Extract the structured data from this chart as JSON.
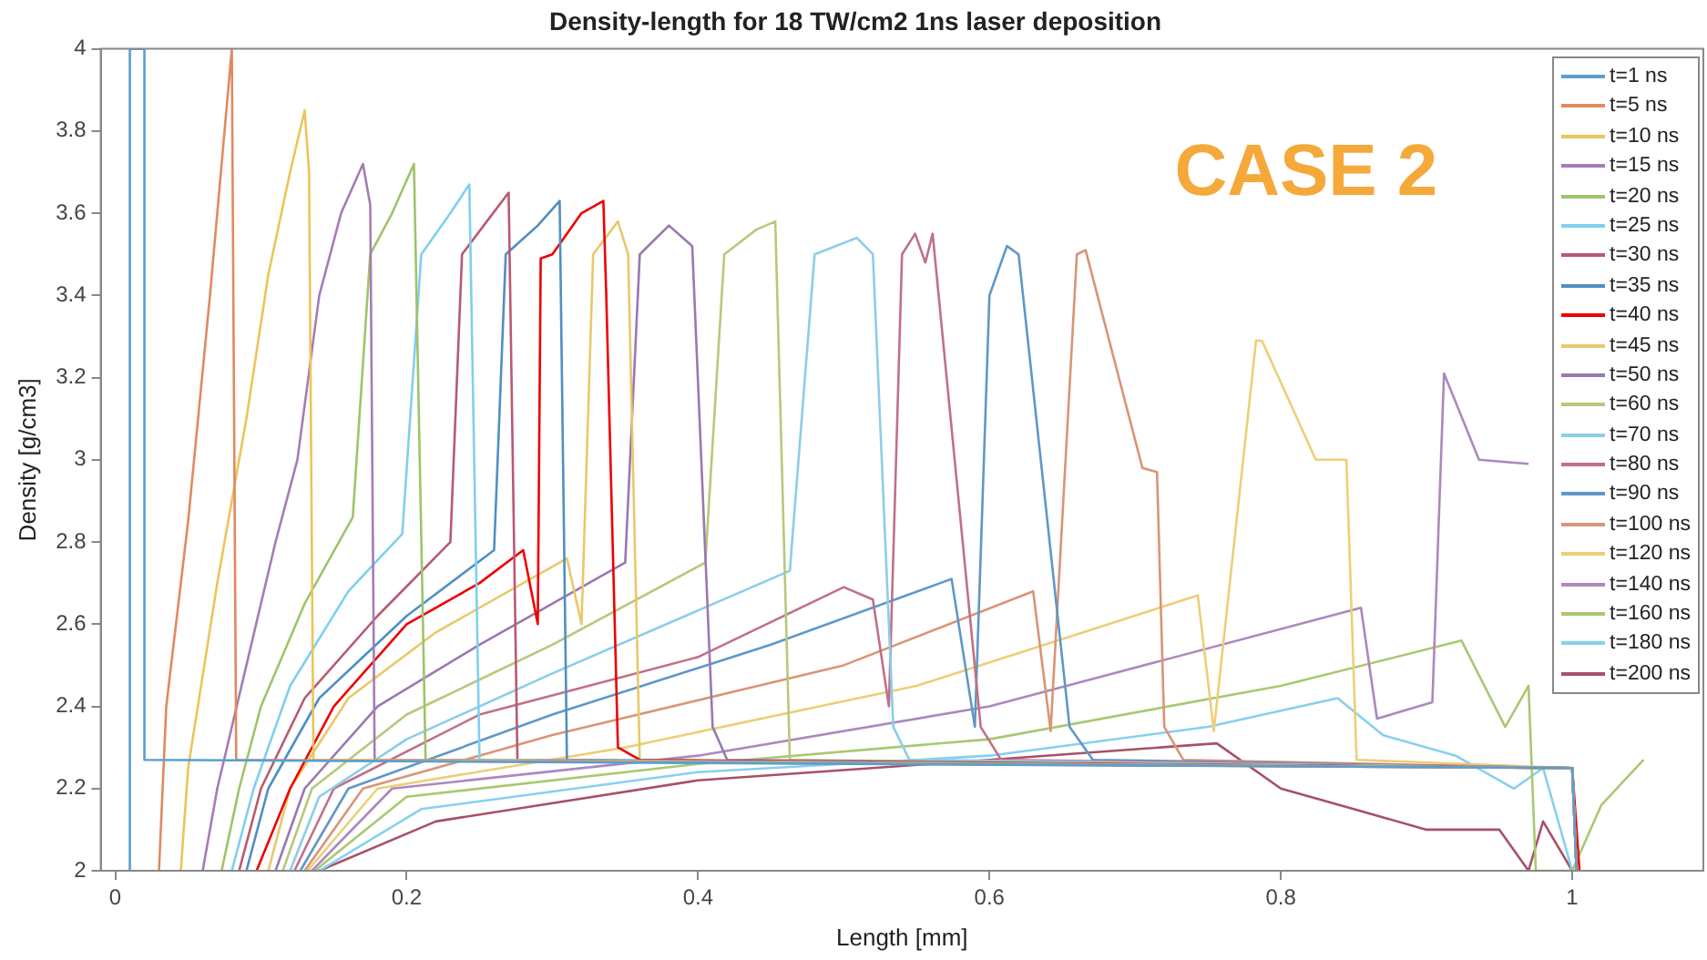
{
  "chart_data": {
    "type": "line",
    "title": "Density-length for 18 TW/cm2 1ns laser deposition",
    "xlabel": "Length [mm]",
    "ylabel": "Density [g/cm3]",
    "annotations": [
      "CASE 2"
    ],
    "xlim": [
      -0.01,
      1.09
    ],
    "xticks": [
      0,
      0.2,
      0.4,
      0.6,
      0.8,
      1
    ],
    "ylim": [
      2,
      4
    ],
    "yticks": [
      2,
      2.2,
      2.4,
      2.6,
      2.8,
      3,
      3.2,
      3.4,
      3.6,
      3.8,
      4
    ],
    "grid": false,
    "legend": "top right",
    "marker": "none",
    "line_style": "solid",
    "series": [
      {
        "name": "t=1 ns",
        "color": "#5a9fd0",
        "x": [
          0.01,
          0.01,
          0.02,
          0.02,
          1.0,
          1.003
        ],
        "values": [
          2,
          4,
          4,
          2.27,
          2.25,
          2
        ]
      },
      {
        "name": "t=5 ns",
        "color": "#e08a60",
        "x": [
          0.03,
          0.035,
          0.05,
          0.065,
          0.075,
          0.08,
          0.083,
          1.0,
          1.003
        ],
        "values": [
          2,
          2.4,
          2.85,
          3.4,
          3.8,
          4,
          2.27,
          2.25,
          2
        ]
      },
      {
        "name": "t=10 ns",
        "color": "#edc45a",
        "x": [
          0.045,
          0.05,
          0.07,
          0.09,
          0.105,
          0.12,
          0.13,
          0.133,
          0.136,
          1.0,
          1.003
        ],
        "values": [
          2,
          2.25,
          2.7,
          3.1,
          3.45,
          3.7,
          3.85,
          3.7,
          2.27,
          2.25,
          2
        ]
      },
      {
        "name": "t=15 ns",
        "color": "#a77bb5",
        "x": [
          0.06,
          0.07,
          0.09,
          0.11,
          0.125,
          0.14,
          0.155,
          0.17,
          0.175,
          0.178,
          1.0,
          1.003
        ],
        "values": [
          2,
          2.2,
          2.5,
          2.8,
          3.0,
          3.4,
          3.6,
          3.72,
          3.62,
          2.27,
          2.25,
          2
        ]
      },
      {
        "name": "t=20 ns",
        "color": "#9dc46a",
        "x": [
          0.073,
          0.085,
          0.1,
          0.13,
          0.163,
          0.175,
          0.19,
          0.205,
          0.213,
          1.0,
          1.003
        ],
        "values": [
          2,
          2.2,
          2.4,
          2.65,
          2.86,
          3.5,
          3.6,
          3.72,
          2.27,
          2.25,
          2
        ]
      },
      {
        "name": "t=25 ns",
        "color": "#7fcff0",
        "x": [
          0.08,
          0.095,
          0.12,
          0.16,
          0.197,
          0.21,
          0.23,
          0.243,
          0.25,
          1.0,
          1.003
        ],
        "values": [
          2,
          2.2,
          2.45,
          2.68,
          2.82,
          3.5,
          3.6,
          3.67,
          2.27,
          2.25,
          2
        ]
      },
      {
        "name": "t=30 ns",
        "color": "#b85a72",
        "x": [
          0.085,
          0.1,
          0.13,
          0.18,
          0.23,
          0.238,
          0.255,
          0.27,
          0.276,
          1.0,
          1.003
        ],
        "values": [
          2,
          2.2,
          2.42,
          2.62,
          2.8,
          3.5,
          3.58,
          3.65,
          2.27,
          2.25,
          2
        ]
      },
      {
        "name": "t=35 ns",
        "color": "#4f8fc4",
        "x": [
          0.09,
          0.105,
          0.14,
          0.2,
          0.26,
          0.268,
          0.29,
          0.305,
          0.31,
          1.0,
          1.003
        ],
        "values": [
          2,
          2.2,
          2.42,
          2.62,
          2.78,
          3.5,
          3.57,
          3.63,
          2.27,
          2.25,
          2
        ]
      },
      {
        "name": "t=40 ns",
        "color": "#ee0000",
        "x": [
          0.097,
          0.12,
          0.15,
          0.2,
          0.25,
          0.28,
          0.29,
          0.292,
          0.3,
          0.32,
          0.335,
          0.337,
          0.345,
          0.36,
          1.0,
          1.005
        ],
        "values": [
          2,
          2.2,
          2.4,
          2.6,
          2.7,
          2.78,
          2.6,
          3.49,
          3.5,
          3.6,
          3.63,
          3.4,
          2.3,
          2.27,
          2.25,
          2
        ]
      },
      {
        "name": "t=45 ns",
        "color": "#e8c86a",
        "x": [
          0.105,
          0.12,
          0.16,
          0.22,
          0.31,
          0.32,
          0.328,
          0.345,
          0.352,
          0.36,
          1.0,
          1.003
        ],
        "values": [
          2,
          2.2,
          2.42,
          2.58,
          2.76,
          2.6,
          3.5,
          3.58,
          3.5,
          2.27,
          2.25,
          2
        ]
      },
      {
        "name": "t=50 ns",
        "color": "#9a78b0",
        "x": [
          0.11,
          0.13,
          0.18,
          0.25,
          0.35,
          0.36,
          0.38,
          0.396,
          0.41,
          0.42,
          1.0,
          1.003
        ],
        "values": [
          2,
          2.2,
          2.4,
          2.55,
          2.75,
          3.5,
          3.57,
          3.52,
          2.35,
          2.27,
          2.25,
          2
        ]
      },
      {
        "name": "t=60 ns",
        "color": "#b5c97a",
        "x": [
          0.115,
          0.135,
          0.2,
          0.3,
          0.405,
          0.418,
          0.44,
          0.453,
          0.463,
          1.0,
          1.003
        ],
        "values": [
          2,
          2.2,
          2.38,
          2.55,
          2.75,
          3.5,
          3.56,
          3.58,
          2.27,
          2.25,
          2
        ]
      },
      {
        "name": "t=70 ns",
        "color": "#8ccde8",
        "x": [
          0.12,
          0.14,
          0.2,
          0.3,
          0.463,
          0.48,
          0.509,
          0.52,
          0.534,
          0.545,
          1.0,
          1.003
        ],
        "values": [
          2,
          2.18,
          2.32,
          2.48,
          2.73,
          3.5,
          3.54,
          3.5,
          2.35,
          2.27,
          2.25,
          2
        ]
      },
      {
        "name": "t=80 ns",
        "color": "#c07088",
        "x": [
          0.123,
          0.15,
          0.25,
          0.4,
          0.5,
          0.52,
          0.531,
          0.54,
          0.549,
          0.556,
          0.561,
          0.594,
          0.608,
          1.0,
          1.003
        ],
        "values": [
          2,
          2.2,
          2.38,
          2.52,
          2.69,
          2.66,
          2.4,
          3.5,
          3.55,
          3.48,
          3.55,
          2.35,
          2.27,
          2.25,
          2
        ]
      },
      {
        "name": "t=90 ns",
        "color": "#5e98c8",
        "x": [
          0.127,
          0.16,
          0.3,
          0.45,
          0.574,
          0.59,
          0.6,
          0.612,
          0.62,
          0.655,
          0.671,
          1.0,
          1.003
        ],
        "values": [
          2,
          2.2,
          2.38,
          2.55,
          2.71,
          2.35,
          3.4,
          3.52,
          3.5,
          2.35,
          2.27,
          2.25,
          2
        ]
      },
      {
        "name": "t=100 ns",
        "color": "#d99575",
        "x": [
          0.13,
          0.17,
          0.3,
          0.5,
          0.63,
          0.642,
          0.66,
          0.666,
          0.705,
          0.715,
          0.72,
          0.733,
          1.0,
          1.003
        ],
        "values": [
          2,
          2.2,
          2.33,
          2.5,
          2.68,
          2.34,
          3.5,
          3.51,
          2.98,
          2.97,
          2.35,
          2.27,
          2.25,
          2
        ]
      },
      {
        "name": "t=120 ns",
        "color": "#eccf78",
        "x": [
          0.132,
          0.18,
          0.35,
          0.55,
          0.743,
          0.754,
          0.783,
          0.787,
          0.824,
          0.845,
          0.852,
          1.0,
          1.003
        ],
        "values": [
          2,
          2.2,
          2.3,
          2.45,
          2.67,
          2.34,
          3.29,
          3.29,
          3.0,
          3.0,
          2.27,
          2.25,
          2
        ]
      },
      {
        "name": "t=140 ns",
        "color": "#ad88bd",
        "x": [
          0.135,
          0.19,
          0.4,
          0.6,
          0.855,
          0.866,
          0.904,
          0.912,
          0.936,
          0.97
        ],
        "values": [
          2,
          2.2,
          2.28,
          2.4,
          2.64,
          2.37,
          2.41,
          3.21,
          3.0,
          2.99
        ]
      },
      {
        "name": "t=160 ns",
        "color": "#a9c872",
        "x": [
          0.137,
          0.2,
          0.4,
          0.6,
          0.8,
          0.924,
          0.954,
          0.97,
          0.975,
          1.0,
          1.02,
          1.049
        ],
        "values": [
          2,
          2.18,
          2.26,
          2.32,
          2.45,
          2.56,
          2.35,
          2.45,
          2,
          2,
          2.16,
          2.27
        ]
      },
      {
        "name": "t=180 ns",
        "color": "#86d0ef",
        "x": [
          0.14,
          0.21,
          0.4,
          0.6,
          0.75,
          0.839,
          0.87,
          0.92,
          0.96,
          0.98,
          1.0
        ],
        "values": [
          2,
          2.15,
          2.24,
          2.28,
          2.35,
          2.42,
          2.33,
          2.28,
          2.2,
          2.25,
          2
        ]
      },
      {
        "name": "t=200 ns",
        "color": "#a85068",
        "x": [
          0.14,
          0.22,
          0.4,
          0.6,
          0.756,
          0.8,
          0.85,
          0.9,
          0.95,
          0.97,
          0.98,
          1.0
        ],
        "values": [
          2,
          2.12,
          2.22,
          2.27,
          2.31,
          2.2,
          2.15,
          2.1,
          2.1,
          2,
          2.12,
          2
        ]
      }
    ]
  }
}
